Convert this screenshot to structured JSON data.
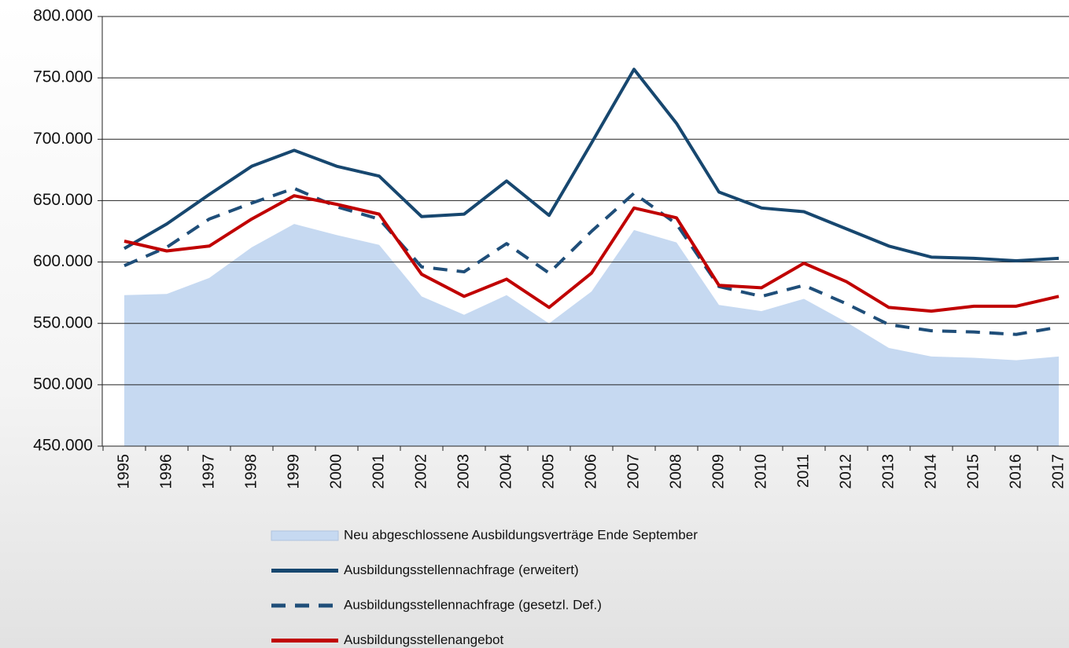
{
  "chart_data": {
    "type": "line",
    "categories": [
      "1995",
      "1996",
      "1997",
      "1998",
      "1999",
      "2000",
      "2001",
      "2002",
      "2003",
      "2004",
      "2005",
      "2006",
      "2007",
      "2008",
      "2009",
      "2010",
      "2011",
      "2012",
      "2013",
      "2014",
      "2015",
      "2016",
      "2017"
    ],
    "series": [
      {
        "name": "Neu abgeschlossene Ausbildungsverträge Ende September",
        "type": "area",
        "color": "#c6d9f1",
        "values": [
          573000,
          574000,
          587000,
          612000,
          631000,
          622000,
          614000,
          572000,
          557000,
          573000,
          550000,
          576000,
          626000,
          616000,
          565000,
          560000,
          570000,
          551000,
          530000,
          523000,
          522000,
          520000,
          523000
        ]
      },
      {
        "name": "Ausbildungsstellennachfrage (erweitert)",
        "type": "line",
        "color": "#17476f",
        "dashed": false,
        "values": [
          611000,
          631000,
          655000,
          678000,
          691000,
          678000,
          670000,
          637000,
          639000,
          666000,
          638000,
          697000,
          757000,
          713000,
          657000,
          644000,
          641000,
          627000,
          613000,
          604000,
          603000,
          601000,
          603000
        ]
      },
      {
        "name": "Ausbildungsstellennachfrage (gesetzl. Def.)",
        "type": "line",
        "color": "#1f4e79",
        "dashed": true,
        "values": [
          597000,
          612000,
          635000,
          648000,
          660000,
          645000,
          635000,
          596000,
          592000,
          615000,
          591000,
          625000,
          656000,
          631000,
          580000,
          572000,
          581000,
          566000,
          549000,
          544000,
          543000,
          541000,
          547000
        ]
      },
      {
        "name": "Ausbildungsstellenangebot",
        "type": "line",
        "color": "#c00000",
        "dashed": false,
        "values": [
          617000,
          609000,
          613000,
          635000,
          654000,
          647000,
          639000,
          590000,
          572000,
          586000,
          563000,
          591000,
          644000,
          636000,
          581000,
          579000,
          599000,
          584000,
          563000,
          560000,
          564000,
          564000,
          572000
        ]
      }
    ],
    "ylim": [
      450000,
      800000
    ],
    "yticks": [
      {
        "value": 450000,
        "label": "450.000"
      },
      {
        "value": 500000,
        "label": "500.000"
      },
      {
        "value": 550000,
        "label": "550.000"
      },
      {
        "value": 600000,
        "label": "600.000"
      },
      {
        "value": 650000,
        "label": "650.000"
      },
      {
        "value": 700000,
        "label": "700.000"
      },
      {
        "value": 750000,
        "label": "750.000"
      },
      {
        "value": 800000,
        "label": "800.000"
      }
    ],
    "grid": true
  }
}
